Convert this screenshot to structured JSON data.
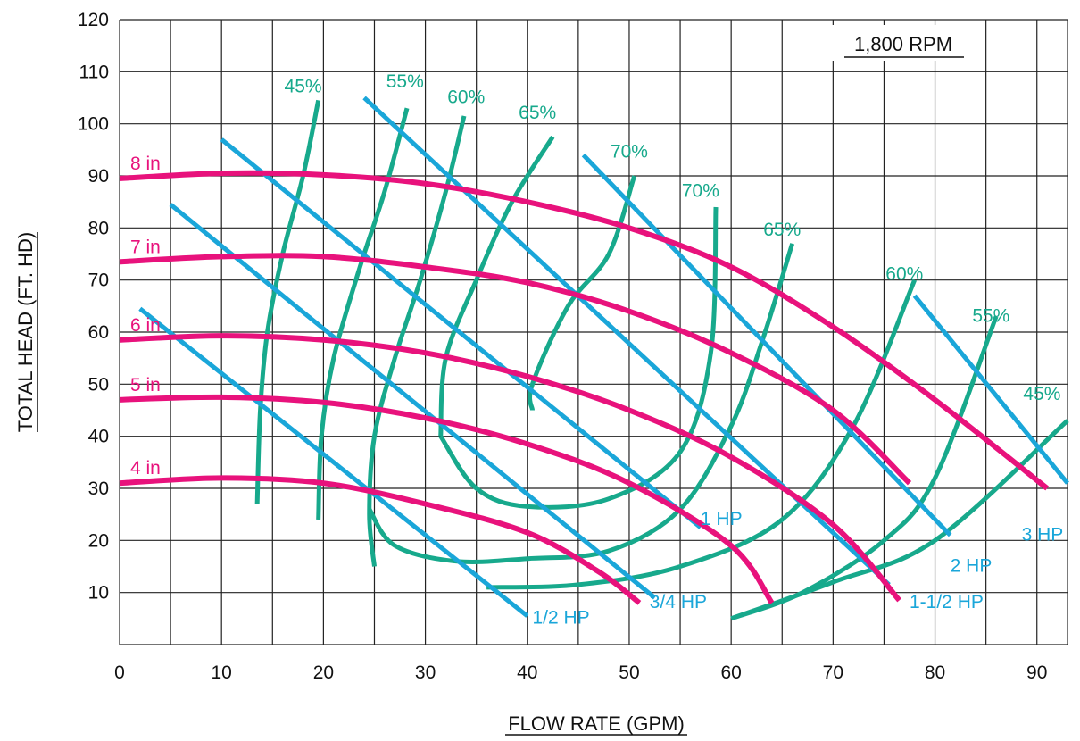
{
  "chart_data": {
    "type": "line",
    "title": "",
    "annotation": "1,800 RPM",
    "xlabel": "FLOW RATE (GPM)",
    "ylabel": "TOTAL HEAD (FT. HD)",
    "xlim": [
      0,
      93
    ],
    "ylim": [
      0,
      120
    ],
    "xticks": [
      0,
      10,
      20,
      30,
      40,
      50,
      60,
      70,
      80,
      90
    ],
    "yticks": [
      10,
      20,
      30,
      40,
      50,
      60,
      70,
      80,
      90,
      100,
      110,
      120
    ],
    "grid": true,
    "colors": {
      "impeller": "#e8127c",
      "efficiency": "#17a98c",
      "horsepower": "#1aa6d9",
      "grid": "#222222"
    },
    "impeller_curves": [
      {
        "name": "8 in",
        "points": [
          [
            0,
            89.5
          ],
          [
            10,
            90.5
          ],
          [
            20,
            90.2
          ],
          [
            30,
            88.5
          ],
          [
            40,
            85
          ],
          [
            50,
            80
          ],
          [
            60,
            72.5
          ],
          [
            70,
            61
          ],
          [
            80,
            47
          ],
          [
            91,
            30
          ]
        ]
      },
      {
        "name": "7 in",
        "points": [
          [
            0,
            73.5
          ],
          [
            10,
            74.5
          ],
          [
            20,
            74.5
          ],
          [
            30,
            72.5
          ],
          [
            40,
            69.5
          ],
          [
            50,
            64
          ],
          [
            60,
            56
          ],
          [
            70,
            45
          ],
          [
            77.5,
            31
          ]
        ]
      },
      {
        "name": "6 in",
        "points": [
          [
            0,
            58.5
          ],
          [
            10,
            59.3
          ],
          [
            20,
            58.5
          ],
          [
            30,
            56
          ],
          [
            40,
            51.5
          ],
          [
            50,
            45
          ],
          [
            60,
            36
          ],
          [
            70,
            23
          ],
          [
            76.5,
            8.5
          ]
        ]
      },
      {
        "name": "5 in",
        "points": [
          [
            0,
            47
          ],
          [
            10,
            47.5
          ],
          [
            20,
            46.5
          ],
          [
            30,
            43.5
          ],
          [
            40,
            38.5
          ],
          [
            50,
            31
          ],
          [
            60,
            19
          ],
          [
            64,
            8
          ]
        ]
      },
      {
        "name": "4 in",
        "points": [
          [
            0,
            31
          ],
          [
            10,
            32
          ],
          [
            20,
            31
          ],
          [
            30,
            27
          ],
          [
            40,
            21.5
          ],
          [
            47,
            14
          ],
          [
            51,
            8
          ]
        ]
      }
    ],
    "efficiency_curves": [
      {
        "name": "45%",
        "label_pos": [
          18,
          106
        ],
        "points": [
          [
            13.5,
            27
          ],
          [
            13.8,
            45
          ],
          [
            14.5,
            60
          ],
          [
            16,
            75
          ],
          [
            18,
            90
          ],
          [
            19.5,
            104.5
          ]
        ]
      },
      {
        "name": "55%",
        "label_pos": [
          28,
          107
        ],
        "points": [
          [
            19.5,
            24
          ],
          [
            19.8,
            40
          ],
          [
            21,
            55
          ],
          [
            23.5,
            72
          ],
          [
            26,
            87
          ],
          [
            28.2,
            103
          ]
        ]
      },
      {
        "name": "60%",
        "label_pos": [
          34,
          104
        ],
        "points": [
          [
            25,
            15
          ],
          [
            24.5,
            25
          ],
          [
            25,
            40
          ],
          [
            27,
            55
          ],
          [
            29.5,
            70
          ],
          [
            32,
            87
          ],
          [
            33.8,
            101.5
          ]
        ]
      },
      {
        "name": "65%",
        "label_pos": [
          41,
          101
        ],
        "points": [
          [
            24.5,
            26
          ],
          [
            27,
            19
          ],
          [
            33,
            16
          ],
          [
            40,
            16.5
          ],
          [
            48,
            18
          ],
          [
            55,
            26
          ],
          [
            60,
            42
          ],
          [
            63,
            58
          ],
          [
            66,
            77
          ]
        ]
      },
      {
        "name": "70%",
        "label_pos": [
          50,
          93.5
        ],
        "points": [
          [
            31.5,
            40
          ],
          [
            35,
            30
          ],
          [
            40,
            26.5
          ],
          [
            48,
            28
          ],
          [
            55,
            37
          ],
          [
            58,
            56
          ],
          [
            58.5,
            84
          ]
        ]
      },
      {
        "name": "70%",
        "label_pos": [
          57,
          86
        ],
        "points": [
          [
            40.5,
            45
          ],
          [
            40.5,
            50
          ],
          [
            44,
            65
          ],
          [
            48,
            75
          ],
          [
            50.5,
            90
          ]
        ]
      },
      {
        "name": "65%",
        "label_pos": [
          65,
          78.5
        ],
        "points": [
          [
            42.5,
            97.5
          ],
          [
            38.5,
            85
          ],
          [
            35,
            70
          ],
          [
            32,
            55
          ],
          [
            31.5,
            40
          ]
        ]
      },
      {
        "name": "60%",
        "label_pos": [
          77,
          70
        ],
        "points": [
          [
            36,
            11
          ],
          [
            45,
            11.5
          ],
          [
            55,
            15
          ],
          [
            65,
            24
          ],
          [
            72,
            42
          ],
          [
            78,
            70
          ]
        ]
      },
      {
        "name": "55%",
        "label_pos": [
          85.5,
          62
        ],
        "points": [
          [
            60,
            5
          ],
          [
            67,
            10
          ],
          [
            75,
            20
          ],
          [
            80,
            32
          ],
          [
            86,
            63
          ]
        ]
      },
      {
        "name": "45%",
        "label_pos": [
          90.5,
          47
        ],
        "points": [
          [
            93,
            43
          ],
          [
            80,
            20
          ],
          [
            70,
            12
          ],
          [
            60,
            5
          ]
        ]
      }
    ],
    "horsepower_lines": [
      {
        "name": "1/2 HP",
        "label_pos": [
          40.5,
          4
        ],
        "points": [
          [
            2,
            64.5
          ],
          [
            40,
            5.5
          ]
        ]
      },
      {
        "name": "3/4 HP",
        "label_pos": [
          52,
          7
        ],
        "points": [
          [
            5,
            84.5
          ],
          [
            52.5,
            9
          ]
        ]
      },
      {
        "name": "1 HP",
        "label_pos": [
          57,
          23
        ],
        "points": [
          [
            10,
            97
          ],
          [
            57,
            22.5
          ]
        ]
      },
      {
        "name": "1-1/2 HP",
        "label_pos": [
          77.5,
          7
        ],
        "points": [
          [
            24,
            105
          ],
          [
            75.5,
            11.5
          ]
        ]
      },
      {
        "name": "2 HP",
        "label_pos": [
          81.5,
          14
        ],
        "points": [
          [
            45.5,
            94
          ],
          [
            81.5,
            21
          ]
        ]
      },
      {
        "name": "3 HP",
        "label_pos": [
          88.5,
          20
        ],
        "points": [
          [
            78,
            67
          ],
          [
            93,
            31
          ]
        ]
      }
    ]
  }
}
